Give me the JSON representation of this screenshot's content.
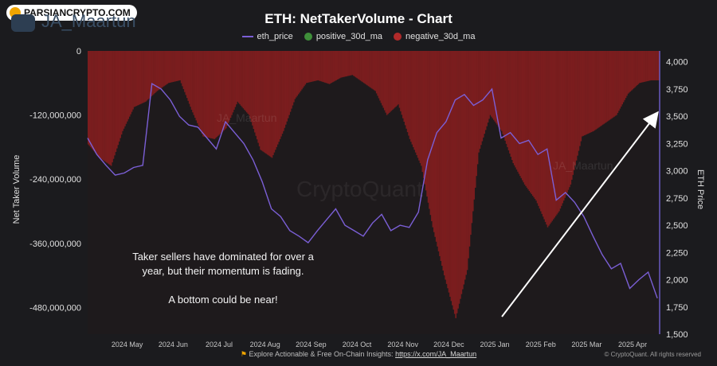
{
  "badge": {
    "text": "PARSIANCRYPTO.COM"
  },
  "author": {
    "handle": "JA_Maartun"
  },
  "chart_data": {
    "type": "bar",
    "title": "ETH: NetTakerVolume - Chart",
    "legend": [
      {
        "name": "eth_price",
        "kind": "line",
        "color": "#7b5fd6"
      },
      {
        "name": "positive_30d_ma",
        "kind": "dot",
        "color": "#3f8f3a"
      },
      {
        "name": "negative_30d_ma",
        "kind": "dot",
        "color": "#b02a2a"
      }
    ],
    "left_axis": {
      "label": "Net Taker Volume",
      "ticks": [
        "0",
        "-120,000,000",
        "-240,000,000",
        "-360,000,000",
        "-480,000,000"
      ],
      "tick_values": [
        0,
        -120000000,
        -240000000,
        -360000000,
        -480000000
      ],
      "range": [
        -530000000,
        0
      ]
    },
    "right_axis": {
      "label": "ETH Price",
      "ticks": [
        "4,000",
        "3,750",
        "3,500",
        "3,250",
        "3,000",
        "2,750",
        "2,500",
        "2,250",
        "2,000",
        "1,750",
        "1,500"
      ],
      "tick_values": [
        4000,
        3750,
        3500,
        3250,
        3000,
        2750,
        2500,
        2250,
        2000,
        1750,
        1500
      ],
      "range": [
        1500,
        4100
      ]
    },
    "x_axis": {
      "ticks": [
        "2024 May",
        "2024 Jun",
        "2024 Jul",
        "2024 Aug",
        "2024 Sep",
        "2024 Oct",
        "2024 Nov",
        "2024 Dec",
        "2025 Jan",
        "2025 Feb",
        "2025 Mar",
        "2025 Apr"
      ],
      "tick_months": [
        1,
        2,
        3,
        4,
        5,
        6,
        7,
        8,
        9,
        10,
        11,
        12
      ]
    },
    "negative_30d_ma": {
      "x_months": [
        0,
        0.25,
        0.5,
        0.75,
        1,
        1.25,
        1.5,
        1.75,
        2,
        2.25,
        2.5,
        2.75,
        3,
        3.25,
        3.5,
        3.75,
        4,
        4.25,
        4.5,
        4.75,
        5,
        5.25,
        5.5,
        5.75,
        6,
        6.25,
        6.5,
        6.75,
        7,
        7.25,
        7.5,
        7.75,
        8,
        8.25,
        8.5,
        8.75,
        9,
        9.25,
        9.5,
        9.75,
        10,
        10.25,
        10.5,
        10.75,
        11,
        11.25,
        11.5,
        11.75,
        12,
        12.25
      ],
      "values": [
        -175000000,
        -200000000,
        -215000000,
        -150000000,
        -105000000,
        -95000000,
        -75000000,
        -60000000,
        -55000000,
        -110000000,
        -160000000,
        -165000000,
        -145000000,
        -95000000,
        -120000000,
        -185000000,
        -200000000,
        -150000000,
        -90000000,
        -60000000,
        -55000000,
        -62000000,
        -50000000,
        -45000000,
        -60000000,
        -75000000,
        -120000000,
        -100000000,
        -165000000,
        -215000000,
        -330000000,
        -420000000,
        -500000000,
        -410000000,
        -190000000,
        -120000000,
        -150000000,
        -210000000,
        -250000000,
        -280000000,
        -330000000,
        -300000000,
        -250000000,
        -160000000,
        -150000000,
        -135000000,
        -120000000,
        -80000000,
        -60000000,
        -55000000
      ]
    },
    "eth_price": {
      "x_months": [
        0,
        0.2,
        0.4,
        0.6,
        0.8,
        1,
        1.2,
        1.4,
        1.6,
        1.8,
        2,
        2.2,
        2.4,
        2.6,
        2.8,
        3,
        3.2,
        3.4,
        3.6,
        3.8,
        4,
        4.2,
        4.4,
        4.6,
        4.8,
        5,
        5.2,
        5.4,
        5.6,
        5.8,
        6,
        6.2,
        6.4,
        6.6,
        6.8,
        7,
        7.2,
        7.4,
        7.6,
        7.8,
        8,
        8.2,
        8.4,
        8.6,
        8.8,
        9,
        9.2,
        9.4,
        9.6,
        9.8,
        10,
        10.2,
        10.4,
        10.6,
        10.8,
        11,
        11.2,
        11.4,
        11.6,
        11.8,
        12,
        12.2,
        12.4
      ],
      "values": [
        3300,
        3150,
        3050,
        2960,
        2980,
        3030,
        3050,
        3800,
        3750,
        3650,
        3500,
        3420,
        3400,
        3300,
        3200,
        3450,
        3350,
        3250,
        3100,
        2900,
        2650,
        2580,
        2450,
        2400,
        2340,
        2450,
        2550,
        2650,
        2500,
        2450,
        2400,
        2520,
        2600,
        2450,
        2500,
        2480,
        2620,
        3100,
        3350,
        3450,
        3650,
        3700,
        3600,
        3650,
        3750,
        3300,
        3350,
        3250,
        3280,
        3150,
        3200,
        2730,
        2800,
        2710,
        2580,
        2400,
        2230,
        2100,
        2150,
        1920,
        2000,
        2070,
        1830
      ]
    }
  },
  "annotation": {
    "line1": "Taker sellers have dominated for over a",
    "line2": "year, but their momentum is fading.",
    "line3": "A bottom could be near!"
  },
  "watermark": {
    "text": "CryptoQuant",
    "small1": "JA_Maartun",
    "small2": "JA_Maartun"
  },
  "footer": {
    "text": "Explore Actionable & Free On-Chain Insights:",
    "link": "https://x.com/JA_Maartun",
    "copyright": "© CryptoQuant. All rights reserved"
  },
  "colors": {
    "background": "#1b1b1e",
    "price": "#7b5fd6",
    "bars": "#8a1f1f",
    "arrow": "#ffffff"
  }
}
